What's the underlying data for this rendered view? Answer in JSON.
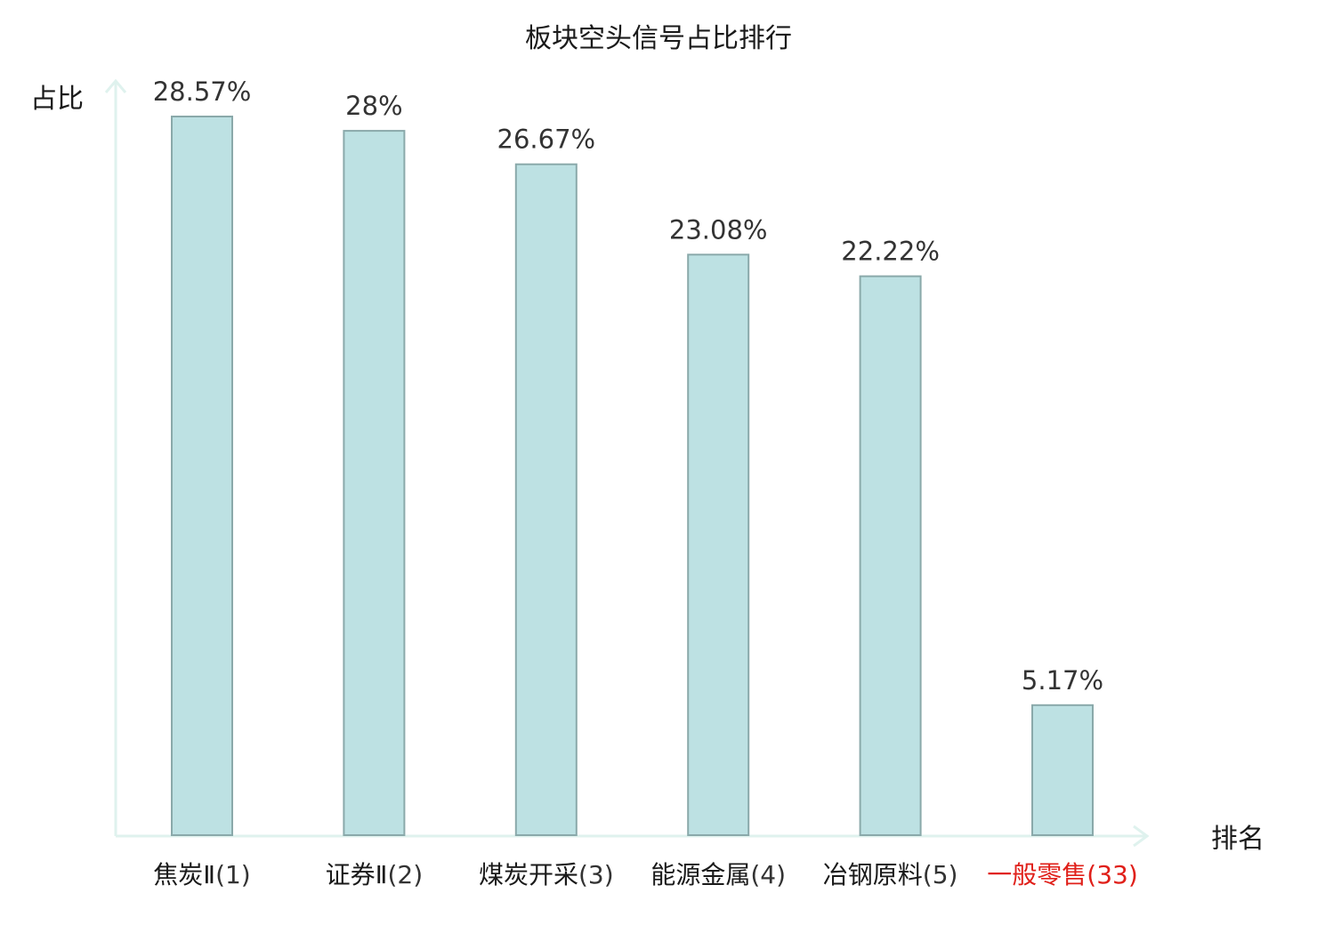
{
  "chart_data": {
    "type": "bar",
    "title": "板块空头信号占比排行",
    "ylabel": "占比",
    "xlabel": "排名",
    "categories": [
      {
        "name": "焦炭Ⅱ",
        "rank": "(1)",
        "highlight": false
      },
      {
        "name": "证券Ⅱ",
        "rank": "(2)",
        "highlight": false
      },
      {
        "name": "煤炭开采",
        "rank": "(3)",
        "highlight": false
      },
      {
        "name": "能源金属",
        "rank": "(4)",
        "highlight": false
      },
      {
        "name": "冶钢原料",
        "rank": "(5)",
        "highlight": false
      },
      {
        "name": "一般零售",
        "rank": "(33)",
        "highlight": true
      }
    ],
    "values": [
      28.57,
      28,
      26.67,
      23.08,
      22.22,
      5.17
    ],
    "value_labels": [
      "28.57%",
      "28%",
      "26.67%",
      "23.08%",
      "22.22%",
      "5.17%"
    ],
    "ylim": [
      0,
      28.57
    ],
    "grid": false,
    "legend": "none"
  },
  "colors": {
    "bar_fill": "#bde1e3",
    "bar_stroke": "#8aa9aa",
    "axis": "#dff2ee",
    "text": "#1a1a1a",
    "value_text": "#333333",
    "highlight_text": "#e0201a"
  }
}
